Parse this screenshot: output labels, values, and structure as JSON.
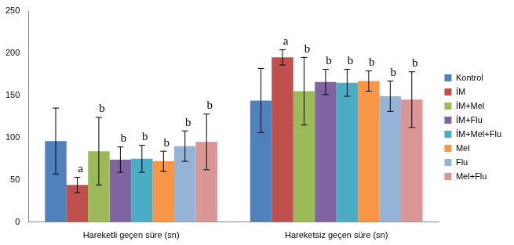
{
  "chart_data": {
    "type": "bar",
    "categories": [
      "Hareketli geçen süre (sn)",
      "Hareketsiz geçen süre (sn)"
    ],
    "ylim": [
      0,
      250
    ],
    "yticks": [
      0,
      50,
      100,
      150,
      200,
      250
    ],
    "grid": false,
    "legend": "right",
    "series": [
      {
        "name": "Kontrol",
        "color": "#4f81bd",
        "values": [
          96,
          144
        ],
        "errors": [
          39,
          38
        ],
        "annotations": [
          null,
          null
        ]
      },
      {
        "name": "İM",
        "color": "#c0504d",
        "values": [
          44,
          195
        ],
        "errors": [
          9,
          9
        ],
        "annotations": [
          "a",
          "a"
        ]
      },
      {
        "name": "İM+Mel",
        "color": "#9bbb59",
        "values": [
          84,
          155
        ],
        "errors": [
          40,
          40
        ],
        "annotations": [
          "b",
          "b"
        ]
      },
      {
        "name": "İM+Flu",
        "color": "#8064a2",
        "values": [
          74,
          166
        ],
        "errors": [
          15,
          15
        ],
        "annotations": [
          "b",
          "b"
        ]
      },
      {
        "name": "İM+Mel+Flu",
        "color": "#4bacc6",
        "values": [
          75,
          165
        ],
        "errors": [
          16,
          16
        ],
        "annotations": [
          "b",
          "b"
        ]
      },
      {
        "name": "Mel",
        "color": "#f79646",
        "values": [
          72,
          167
        ],
        "errors": [
          12,
          12
        ],
        "annotations": [
          "b",
          "b"
        ]
      },
      {
        "name": "Flu",
        "color": "#95b3d7",
        "values": [
          90,
          149
        ],
        "errors": [
          18,
          18
        ],
        "annotations": [
          "b",
          "b"
        ]
      },
      {
        "name": "Mel+Flu",
        "color": "#d99694",
        "values": [
          95,
          145
        ],
        "errors": [
          33,
          33
        ],
        "annotations": [
          "b",
          "b"
        ]
      }
    ]
  }
}
